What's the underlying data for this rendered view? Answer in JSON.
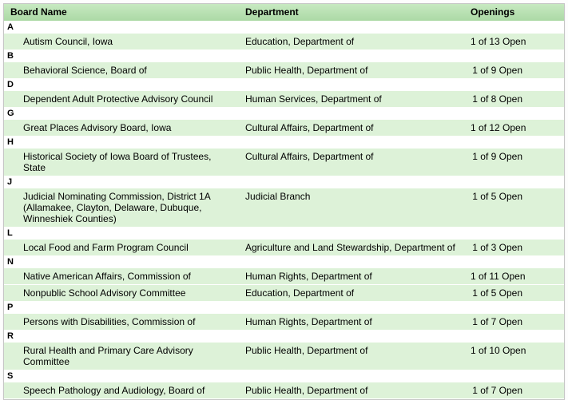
{
  "colors": {
    "header_green": "#abd9a5",
    "header_green_top": "#c7e9c1",
    "row_green": "#ddf2d8"
  },
  "table": {
    "columns": [
      "Board Name",
      "Department",
      "Openings"
    ],
    "groups": [
      {
        "letter": "A",
        "rows": [
          {
            "board": "Autism Council, Iowa",
            "department": "Education, Department of",
            "openings": "1 of 13 Open"
          }
        ]
      },
      {
        "letter": "B",
        "rows": [
          {
            "board": "Behavioral Science, Board of",
            "department": "Public Health, Department of",
            "openings": "1 of 9 Open"
          }
        ]
      },
      {
        "letter": "D",
        "rows": [
          {
            "board": "Dependent Adult Protective Advisory Council",
            "department": "Human Services, Department of",
            "openings": "1 of 8 Open"
          }
        ]
      },
      {
        "letter": "G",
        "rows": [
          {
            "board": "Great Places Advisory Board, Iowa",
            "department": "Cultural Affairs, Department of",
            "openings": "1 of 12 Open"
          }
        ]
      },
      {
        "letter": "H",
        "rows": [
          {
            "board": "Historical Society of Iowa Board of Trustees, State",
            "department": "Cultural Affairs, Department of",
            "openings": "1 of 9 Open"
          }
        ]
      },
      {
        "letter": "J",
        "rows": [
          {
            "board": "Judicial Nominating Commission, District 1A (Allamakee, Clayton, Delaware, Dubuque, Winneshiek Counties)",
            "department": "Judicial Branch",
            "openings": "1 of 5 Open"
          }
        ]
      },
      {
        "letter": "L",
        "rows": [
          {
            "board": "Local Food and Farm Program Council",
            "department": "Agriculture and Land Stewardship, Department of",
            "openings": "1 of 3 Open"
          }
        ]
      },
      {
        "letter": "N",
        "rows": [
          {
            "board": "Native American Affairs, Commission of",
            "department": "Human Rights, Department of",
            "openings": "1 of 11 Open"
          },
          {
            "board": "Nonpublic School Advisory Committee",
            "department": "Education, Department of",
            "openings": "1 of 5 Open"
          }
        ]
      },
      {
        "letter": "P",
        "rows": [
          {
            "board": "Persons with Disabilities, Commission of",
            "department": "Human Rights, Department of",
            "openings": "1 of 7 Open"
          }
        ]
      },
      {
        "letter": "R",
        "rows": [
          {
            "board": "Rural Health and Primary Care Advisory Committee",
            "department": "Public Health, Department of",
            "openings": "1 of 10 Open"
          }
        ]
      },
      {
        "letter": "S",
        "rows": [
          {
            "board": "Speech Pathology and Audiology, Board of",
            "department": "Public Health, Department of",
            "openings": "1 of 7 Open"
          }
        ]
      }
    ]
  }
}
